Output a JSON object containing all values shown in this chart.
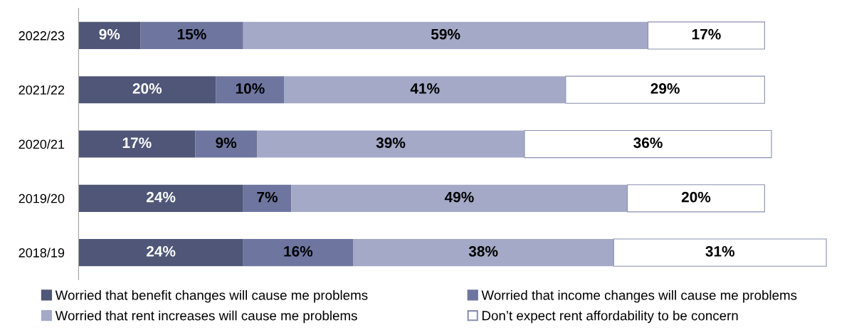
{
  "chart_data": {
    "type": "bar",
    "orientation": "horizontal",
    "stacked": true,
    "legend": "bottom",
    "grid": false,
    "categories": [
      "2022/23",
      "2021/22",
      "2020/21",
      "2019/20",
      "2018/19"
    ],
    "series": [
      {
        "name": "Worried that benefit changes will cause me problems",
        "color": "#4f5677",
        "values": [
          9,
          20,
          17,
          24,
          24
        ],
        "value_labels": [
          "9%",
          "20%",
          "17%",
          "24%",
          "24%"
        ]
      },
      {
        "name": "Worried that income changes will cause me problems",
        "color": "#6e76a0",
        "values": [
          15,
          10,
          9,
          7,
          16
        ],
        "value_labels": [
          "15%",
          "10%",
          "9%",
          "7%",
          "16%"
        ]
      },
      {
        "name": "Worried that rent increases will cause me problems",
        "color": "#a3a9c6",
        "values": [
          59,
          41,
          39,
          49,
          38
        ],
        "value_labels": [
          "59%",
          "41%",
          "39%",
          "49%",
          "38%"
        ]
      },
      {
        "name": "Don’t expect rent affordability to be concern",
        "color": "#ffffff",
        "values": [
          17,
          29,
          36,
          20,
          31
        ],
        "value_labels": [
          "17%",
          "29%",
          "36%",
          "20%",
          "31%"
        ]
      }
    ]
  }
}
